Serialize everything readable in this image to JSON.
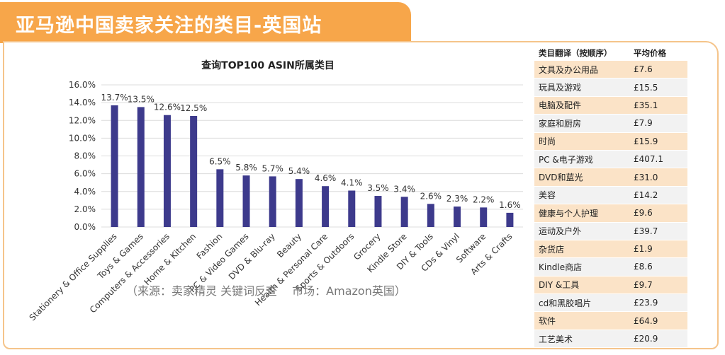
{
  "banner": {
    "title": "亚马逊中国卖家关注的类目-英国站"
  },
  "chart_data": {
    "type": "bar",
    "title": "查询TOP100 ASIN所属类目",
    "categories": [
      "Stationery & Office Supplies",
      "Toys & Games",
      "Computers & Accessories",
      "Home & Kitchen",
      "Fashion",
      "PC & Video Games",
      "DVD & Blu-ray",
      "Beauty",
      "Health & Personal Care",
      "Sports & Outdoors",
      "Grocery",
      "Kindle Store",
      "DIY & Tools",
      "CDs & Vinyl",
      "Software",
      "Arts & Crafts"
    ],
    "values": [
      13.7,
      13.5,
      12.6,
      12.5,
      6.5,
      5.8,
      5.7,
      5.4,
      4.6,
      4.1,
      3.5,
      3.4,
      2.6,
      2.3,
      2.2,
      1.6
    ],
    "data_labels": [
      "13.7%",
      "13.5%",
      "12.6%",
      "12.5%",
      "6.5%",
      "5.8%",
      "5.7%",
      "5.4%",
      "4.6%",
      "4.1%",
      "3.5%",
      "3.4%",
      "2.6%",
      "2.3%",
      "2.2%",
      "1.6%"
    ],
    "yticks": [
      "0.0%",
      "2.0%",
      "4.0%",
      "6.0%",
      "8.0%",
      "10.0%",
      "12.0%",
      "14.0%",
      "16.0%"
    ],
    "ylim": [
      0,
      16
    ],
    "grid": true,
    "color": "#3d3a8c"
  },
  "source": "（来源：卖家精灵 关键词反查　 市场：Amazon英国）",
  "table": {
    "headers": [
      "类目翻译（按顺序）",
      "平均价格"
    ],
    "rows": [
      [
        "文具及办公用品",
        "£7.6"
      ],
      [
        "玩具及游戏",
        "£15.5"
      ],
      [
        "电脑及配件",
        "£35.1"
      ],
      [
        "家庭和厨房",
        "£7.9"
      ],
      [
        "时尚",
        "£15.9"
      ],
      [
        "PC &电子游戏",
        "£407.1"
      ],
      [
        "DVD和蓝光",
        "£31.0"
      ],
      [
        "美容",
        "£14.2"
      ],
      [
        "健康与个人护理",
        "£9.6"
      ],
      [
        "运动及户外",
        "£39.7"
      ],
      [
        "杂货店",
        "£1.9"
      ],
      [
        "Kindle商店",
        "£8.6"
      ],
      [
        "DIY &工具",
        "£9.7"
      ],
      [
        "cd和黑胶唱片",
        "£23.9"
      ],
      [
        "软件",
        "£64.9"
      ],
      [
        "工艺美术",
        "£20.9"
      ]
    ]
  }
}
